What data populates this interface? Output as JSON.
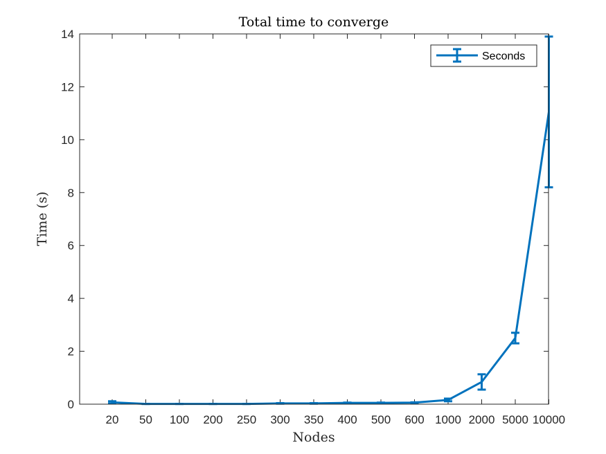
{
  "chart_data": {
    "type": "line",
    "title": "Total time to converge",
    "xlabel": "Nodes",
    "ylabel": "Time (s)",
    "categories": [
      "20",
      "50",
      "100",
      "200",
      "250",
      "300",
      "350",
      "400",
      "500",
      "600",
      "1000",
      "2000",
      "5000",
      "10000"
    ],
    "ylim": [
      0,
      14
    ],
    "yticks": [
      0,
      2,
      4,
      6,
      8,
      10,
      12,
      14
    ],
    "grid": false,
    "legend": "top-right",
    "series": [
      {
        "name": "Seconds",
        "color": "#0072BD",
        "values": [
          0.07,
          0.01,
          0.01,
          0.01,
          0.01,
          0.03,
          0.03,
          0.05,
          0.05,
          0.06,
          0.16,
          0.84,
          2.5,
          11.05
        ],
        "error_low": [
          0.04,
          0.0,
          0.0,
          0.0,
          0.0,
          0.01,
          0.01,
          0.01,
          0.01,
          0.01,
          0.05,
          0.29,
          0.2,
          2.85
        ],
        "error_high": [
          0.04,
          0.0,
          0.0,
          0.0,
          0.0,
          0.01,
          0.01,
          0.01,
          0.01,
          0.01,
          0.05,
          0.29,
          0.2,
          2.85
        ]
      }
    ]
  }
}
